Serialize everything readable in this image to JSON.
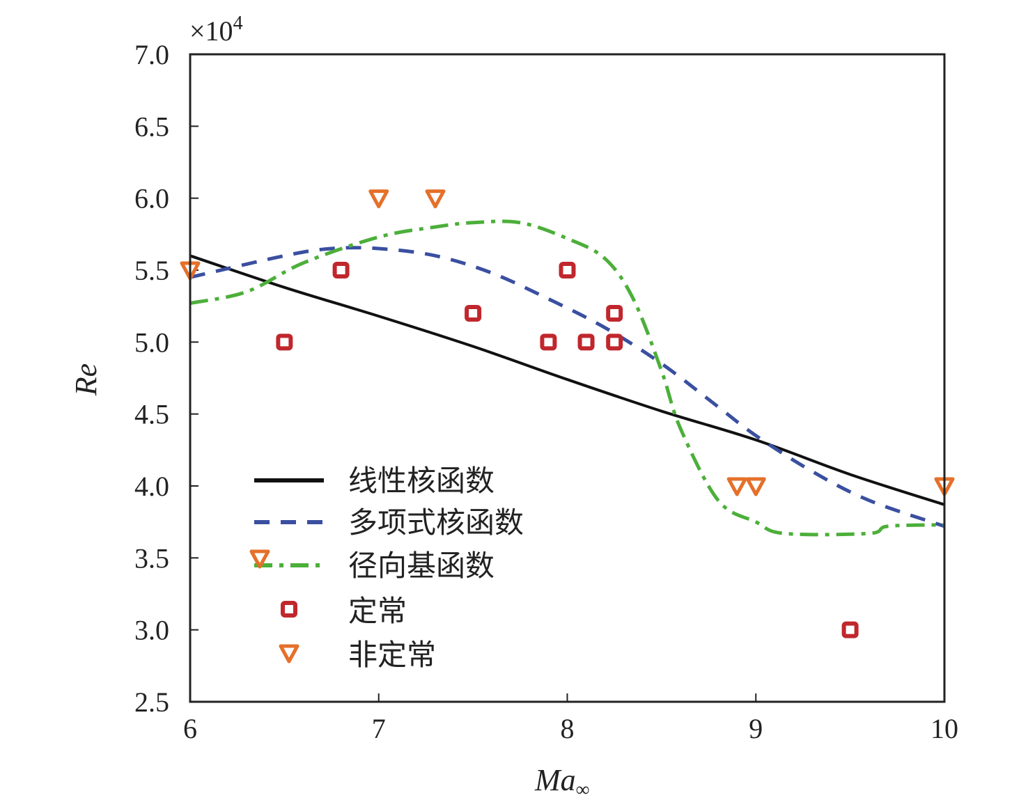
{
  "chart_data": {
    "type": "line",
    "title": "",
    "xlabel": "Ma",
    "xlabel_sub": "∞",
    "ylabel": "Re",
    "y_multiplier": "×10",
    "y_multiplier_exp": "4",
    "xlim": [
      6,
      10
    ],
    "ylim": [
      2.5,
      7.0
    ],
    "xticks": [
      "6",
      "7",
      "8",
      "9",
      "10"
    ],
    "yticks": [
      "2.5",
      "3.0",
      "3.5",
      "4.0",
      "4.5",
      "5.0",
      "5.5",
      "6.0",
      "6.5",
      "7.0"
    ],
    "grid": false,
    "legend_position": "bottom-left",
    "colors": {
      "linear": "#111111",
      "poly": "#3a4fa0",
      "rbf": "#4caf3a",
      "steady": "#c0272d",
      "unsteady": "#e5702a"
    },
    "series": [
      {
        "name": "线性核函数",
        "style": "solid",
        "color": "#111111",
        "x": [
          6,
          6.5,
          7,
          7.5,
          8,
          8.5,
          9,
          9.5,
          10
        ],
        "y": [
          5.6,
          5.38,
          5.18,
          4.97,
          4.74,
          4.52,
          4.32,
          4.08,
          3.87
        ]
      },
      {
        "name": "多项式核函数",
        "style": "dashed",
        "color": "#3a4fa0",
        "x": [
          6,
          6.5,
          6.75,
          7,
          7.3,
          7.6,
          7.9,
          8.2,
          8.5,
          8.8,
          9,
          9.3,
          9.6,
          10
        ],
        "y": [
          5.45,
          5.6,
          5.65,
          5.65,
          5.6,
          5.48,
          5.3,
          5.1,
          4.85,
          4.55,
          4.35,
          4.1,
          3.9,
          3.72
        ]
      },
      {
        "name": "径向基函数",
        "style": "dashdot",
        "color": "#4caf3a",
        "x": [
          6,
          6.3,
          6.6,
          7,
          7.3,
          7.5,
          7.75,
          8,
          8.2,
          8.35,
          8.5,
          8.6,
          8.8,
          9,
          9.15,
          9.6,
          9.7,
          10
        ],
        "y": [
          5.27,
          5.35,
          5.55,
          5.73,
          5.8,
          5.83,
          5.83,
          5.72,
          5.58,
          5.3,
          4.8,
          4.4,
          3.9,
          3.75,
          3.67,
          3.67,
          3.72,
          3.73
        ]
      }
    ],
    "scatter": [
      {
        "name": "定常",
        "marker": "square",
        "color": "#c0272d",
        "x": [
          6.5,
          6.8,
          7.5,
          7.9,
          8.0,
          8.1,
          8.25,
          8.25,
          9.5
        ],
        "y": [
          5.0,
          5.5,
          5.2,
          5.0,
          5.5,
          5.0,
          5.2,
          5.0,
          3.0
        ]
      },
      {
        "name": "非定常",
        "marker": "triangle-down",
        "color": "#e5702a",
        "x": [
          6.0,
          7.0,
          7.3,
          8.9,
          9.0,
          10.0
        ],
        "y": [
          5.5,
          6.0,
          6.0,
          4.0,
          4.0,
          4.0
        ]
      }
    ]
  }
}
